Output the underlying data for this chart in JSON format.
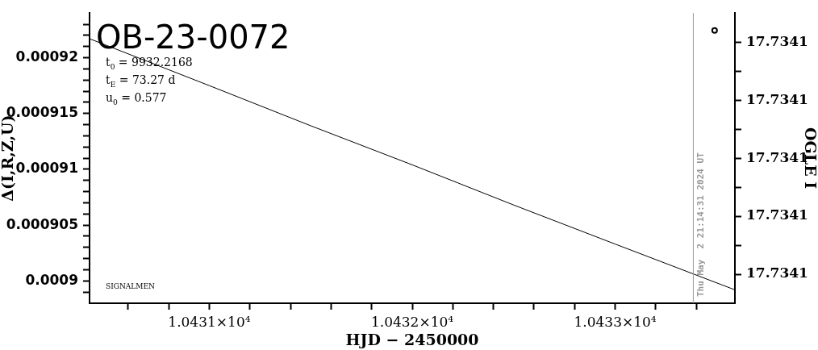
{
  "chart_data": {
    "type": "line",
    "title": "OB-23-0072",
    "xlabel": "HJD − 2450000",
    "ylabel": "Δ(I,R,Z,U)",
    "y2label": "OGLE I",
    "x": [
      10430.41,
      10431,
      10431.5,
      10432,
      10432.5,
      10433,
      10433.59
    ],
    "series": [
      {
        "color": "#000000",
        "values": [
          0.0009217,
          0.0009175,
          0.0009139,
          0.0009104,
          0.0009068,
          0.0009033,
          0.0008992
        ]
      },
      {
        "type": "scatter",
        "axis": "y2",
        "marker": "circle",
        "color": "#000000",
        "x": [
          10433.49
        ],
        "values": [
          17.7341044
        ]
      }
    ],
    "xlim": [
      10430.41,
      10433.59
    ],
    "xticks": [
      {
        "value": 10430.6,
        "label": null
      },
      {
        "value": 10430.8,
        "label": null
      },
      {
        "value": 10431,
        "label": "1.0431×10⁴"
      },
      {
        "value": 10431.2,
        "label": null
      },
      {
        "value": 10431.4,
        "label": null
      },
      {
        "value": 10431.6,
        "label": null
      },
      {
        "value": 10431.8,
        "label": null
      },
      {
        "value": 10432,
        "label": "1.0432×10⁴"
      },
      {
        "value": 10432.2,
        "label": null
      },
      {
        "value": 10432.4,
        "label": null
      },
      {
        "value": 10432.6,
        "label": null
      },
      {
        "value": 10432.8,
        "label": null
      },
      {
        "value": 10433,
        "label": "1.0433×10⁴"
      },
      {
        "value": 10433.2,
        "label": null
      },
      {
        "value": 10433.4,
        "label": null
      }
    ],
    "ylim": [
      0.000898,
      0.000924
    ],
    "yticks": [
      {
        "value": 0.000899,
        "label": null
      },
      {
        "value": 0.0009,
        "label": "0.0009"
      },
      {
        "value": 0.000901,
        "label": null
      },
      {
        "value": 0.000902,
        "label": null
      },
      {
        "value": 0.000903,
        "label": null
      },
      {
        "value": 0.000904,
        "label": null
      },
      {
        "value": 0.000905,
        "label": "0.000905"
      },
      {
        "value": 0.000906,
        "label": null
      },
      {
        "value": 0.000907,
        "label": null
      },
      {
        "value": 0.000908,
        "label": null
      },
      {
        "value": 0.000909,
        "label": null
      },
      {
        "value": 0.00091,
        "label": "0.00091"
      },
      {
        "value": 0.000911,
        "label": null
      },
      {
        "value": 0.000912,
        "label": null
      },
      {
        "value": 0.000913,
        "label": null
      },
      {
        "value": 0.000914,
        "label": null
      },
      {
        "value": 0.000915,
        "label": "0.000915"
      },
      {
        "value": 0.000916,
        "label": null
      },
      {
        "value": 0.000917,
        "label": null
      },
      {
        "value": 0.000918,
        "label": null
      },
      {
        "value": 0.000919,
        "label": null
      },
      {
        "value": 0.00092,
        "label": "0.00092"
      },
      {
        "value": 0.000921,
        "label": null
      },
      {
        "value": 0.000922,
        "label": null
      },
      {
        "value": 0.000923,
        "label": null
      }
    ],
    "y2lim": [
      17.734095,
      17.734105
    ],
    "y2ticks": [
      {
        "value": 17.734096,
        "label": "17.7341"
      },
      {
        "value": 17.734097,
        "label": null
      },
      {
        "value": 17.734098,
        "label": "17.7341"
      },
      {
        "value": 17.734099,
        "label": null
      },
      {
        "value": 17.7341,
        "label": "17.7341"
      },
      {
        "value": 17.734101,
        "label": null
      },
      {
        "value": 17.734102,
        "label": "17.7341"
      },
      {
        "value": 17.734103,
        "label": null
      },
      {
        "value": 17.734104,
        "label": "17.7341"
      }
    ],
    "ref_lines": [
      {
        "axis": "x",
        "value": 10433.385,
        "color": "#999999"
      }
    ],
    "annotations": [
      "t$_{0}$ = 9932.2168",
      "t$_{E}$ = 73.27 d",
      "u$_{0}$ = 0.577",
      "SIGNALMEN",
      {
        "text": "Thu May  2 21:14:31 2024 UT",
        "x": 10433.385
      }
    ],
    "grid": false,
    "legend": false,
    "marker": "none",
    "line_style": "solid"
  }
}
